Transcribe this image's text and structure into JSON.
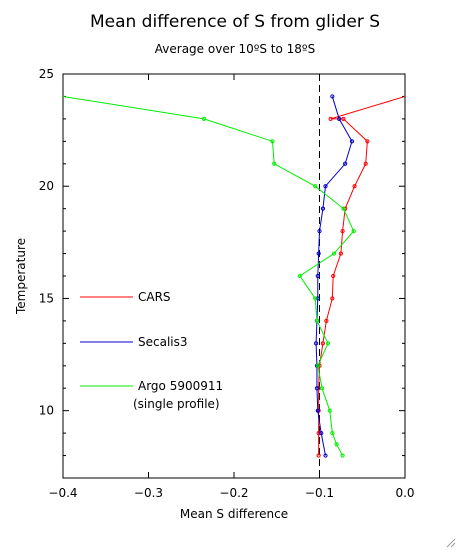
{
  "chart_data": {
    "type": "line",
    "title": "Mean difference of S from glider S",
    "subtitle": "Average over 10ºS to 18ºS",
    "xlabel": "Mean S difference",
    "ylabel": "Temperature",
    "xlim": [
      -0.4,
      0.0
    ],
    "ylim": [
      7,
      25
    ],
    "xticks": [
      -0.4,
      -0.3,
      -0.2,
      -0.1,
      0.0
    ],
    "xtick_labels": [
      "−0.4",
      "−0.3",
      "−0.2",
      "−0.1",
      "0.0"
    ],
    "yticks": [
      10,
      15,
      20,
      25
    ],
    "ytick_labels": [
      "10",
      "15",
      "20",
      "25"
    ],
    "reference_line": {
      "x": -0.1,
      "style": "dashed",
      "color": "#000000"
    },
    "legend_placement": "left",
    "series": [
      {
        "name": "CARS",
        "color": "#ff0000",
        "points": [
          [
            0.0,
            24
          ],
          [
            -0.087,
            23
          ],
          [
            -0.072,
            23
          ],
          [
            -0.044,
            22
          ],
          [
            -0.046,
            21
          ],
          [
            -0.059,
            20
          ],
          [
            -0.07,
            19
          ],
          [
            -0.073,
            18
          ],
          [
            -0.075,
            17
          ],
          [
            -0.084,
            16
          ],
          [
            -0.085,
            15
          ],
          [
            -0.092,
            14
          ],
          [
            -0.096,
            13
          ],
          [
            -0.1,
            12
          ],
          [
            -0.101,
            11
          ],
          [
            -0.101,
            10
          ],
          [
            -0.101,
            9
          ],
          [
            -0.101,
            8
          ]
        ]
      },
      {
        "name": "Secalis3",
        "color": "#0000cc",
        "points": [
          [
            -0.085,
            24
          ],
          [
            -0.077,
            23
          ],
          [
            -0.062,
            22
          ],
          [
            -0.07,
            21
          ],
          [
            -0.093,
            20
          ],
          [
            -0.096,
            19
          ],
          [
            -0.1,
            18
          ],
          [
            -0.101,
            17
          ],
          [
            -0.102,
            16
          ],
          [
            -0.102,
            15
          ],
          [
            -0.103,
            14
          ],
          [
            -0.104,
            13
          ],
          [
            -0.103,
            12
          ],
          [
            -0.103,
            11
          ],
          [
            -0.102,
            10
          ],
          [
            -0.098,
            9
          ],
          [
            -0.093,
            8
          ]
        ]
      },
      {
        "name": "Argo 5900911",
        "note": "(single profile)",
        "color": "#00ee00",
        "points": [
          [
            -0.4,
            24
          ],
          [
            -0.235,
            23
          ],
          [
            -0.155,
            22
          ],
          [
            -0.153,
            21
          ],
          [
            -0.105,
            20
          ],
          [
            -0.072,
            19
          ],
          [
            -0.06,
            18
          ],
          [
            -0.083,
            17
          ],
          [
            -0.123,
            16
          ],
          [
            -0.105,
            15
          ],
          [
            -0.103,
            14
          ],
          [
            -0.09,
            13
          ],
          [
            -0.102,
            12
          ],
          [
            -0.097,
            11
          ],
          [
            -0.088,
            10
          ],
          [
            -0.085,
            9
          ],
          [
            -0.08,
            8.5
          ],
          [
            -0.073,
            8
          ]
        ]
      }
    ]
  }
}
